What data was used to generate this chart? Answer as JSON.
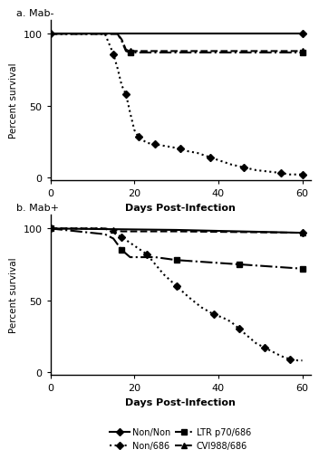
{
  "panel_a": {
    "title": "a. Mab-",
    "curves": [
      {
        "label": "Non/Non",
        "x": [
          0,
          60
        ],
        "y": [
          100,
          100
        ],
        "linestyle": "-",
        "marker": "D",
        "color": "black",
        "linewidth": 1.5,
        "markersize": 4,
        "markevery": [
          1
        ]
      },
      {
        "label": "Non/686",
        "x": [
          0,
          13,
          14,
          15,
          16,
          17,
          18,
          19,
          20,
          21,
          22,
          23,
          25,
          27,
          29,
          31,
          33,
          35,
          38,
          41,
          43,
          46,
          49,
          52,
          55,
          57,
          59,
          60
        ],
        "y": [
          100,
          100,
          93,
          86,
          76,
          64,
          58,
          45,
          33,
          28,
          26,
          24,
          23,
          22,
          21,
          20,
          18,
          17,
          14,
          11,
          9,
          7,
          5,
          4,
          3,
          2,
          2,
          2
        ],
        "linestyle": ":",
        "marker": "D",
        "color": "black",
        "linewidth": 1.5,
        "markersize": 4,
        "markevery": 3
      },
      {
        "label": "LTR p70/686",
        "x": [
          0,
          16,
          17,
          18,
          19,
          30,
          45,
          60
        ],
        "y": [
          100,
          100,
          95,
          88,
          87,
          87,
          87,
          87
        ],
        "linestyle": "-.",
        "marker": "s",
        "color": "black",
        "linewidth": 1.5,
        "markersize": 4,
        "markevery": [
          4,
          7
        ]
      },
      {
        "label": "CVI988/686",
        "x": [
          0,
          16,
          17,
          18,
          19,
          30,
          45,
          60
        ],
        "y": [
          100,
          100,
          96,
          89,
          88,
          88,
          88,
          88
        ],
        "linestyle": "--",
        "marker": "^",
        "color": "black",
        "linewidth": 1.5,
        "markersize": 4,
        "markevery": [
          4,
          7
        ]
      }
    ],
    "xlabel": "Days Post-Infection",
    "ylabel": "Percent survival",
    "xlim": [
      0,
      62
    ],
    "ylim": [
      -2,
      110
    ],
    "xticks": [
      0,
      20,
      40,
      60
    ],
    "yticks": [
      0,
      50,
      100
    ]
  },
  "panel_b": {
    "title": "b. Mab+",
    "curves": [
      {
        "label": "Non/Non",
        "x": [
          0,
          30,
          60
        ],
        "y": [
          100,
          99,
          97
        ],
        "linestyle": "-",
        "marker": "D",
        "color": "black",
        "linewidth": 1.5,
        "markersize": 4,
        "markevery": [
          2
        ]
      },
      {
        "label": "Non/686",
        "x": [
          0,
          13,
          15,
          17,
          19,
          21,
          23,
          25,
          27,
          30,
          33,
          36,
          39,
          41,
          43,
          45,
          47,
          49,
          51,
          53,
          55,
          57,
          59,
          60
        ],
        "y": [
          100,
          100,
          97,
          94,
          90,
          86,
          82,
          75,
          68,
          60,
          52,
          45,
          40,
          38,
          35,
          30,
          25,
          20,
          17,
          14,
          11,
          9,
          8,
          8
        ],
        "linestyle": ":",
        "marker": "D",
        "color": "black",
        "linewidth": 1.5,
        "markersize": 4,
        "markevery": 3
      },
      {
        "label": "LTR p70/686",
        "x": [
          0,
          13,
          15,
          17,
          19,
          25,
          30,
          35,
          40,
          45,
          50,
          55,
          60
        ],
        "y": [
          100,
          96,
          93,
          85,
          80,
          80,
          78,
          77,
          76,
          75,
          74,
          73,
          72
        ],
        "linestyle": "-.",
        "marker": "s",
        "color": "black",
        "linewidth": 1.5,
        "markersize": 4,
        "markevery": 3
      },
      {
        "label": "CVI988/686",
        "x": [
          0,
          13,
          15,
          17,
          30,
          60
        ],
        "y": [
          100,
          100,
          99,
          98,
          98,
          97
        ],
        "linestyle": "--",
        "marker": "^",
        "color": "black",
        "linewidth": 1.5,
        "markersize": 4,
        "markevery": [
          2,
          5
        ]
      }
    ],
    "xlabel": "Days Post-Infection",
    "ylabel": "Percent survival",
    "xlim": [
      0,
      62
    ],
    "ylim": [
      -2,
      110
    ],
    "xticks": [
      0,
      20,
      40,
      60
    ],
    "yticks": [
      0,
      50,
      100
    ]
  }
}
